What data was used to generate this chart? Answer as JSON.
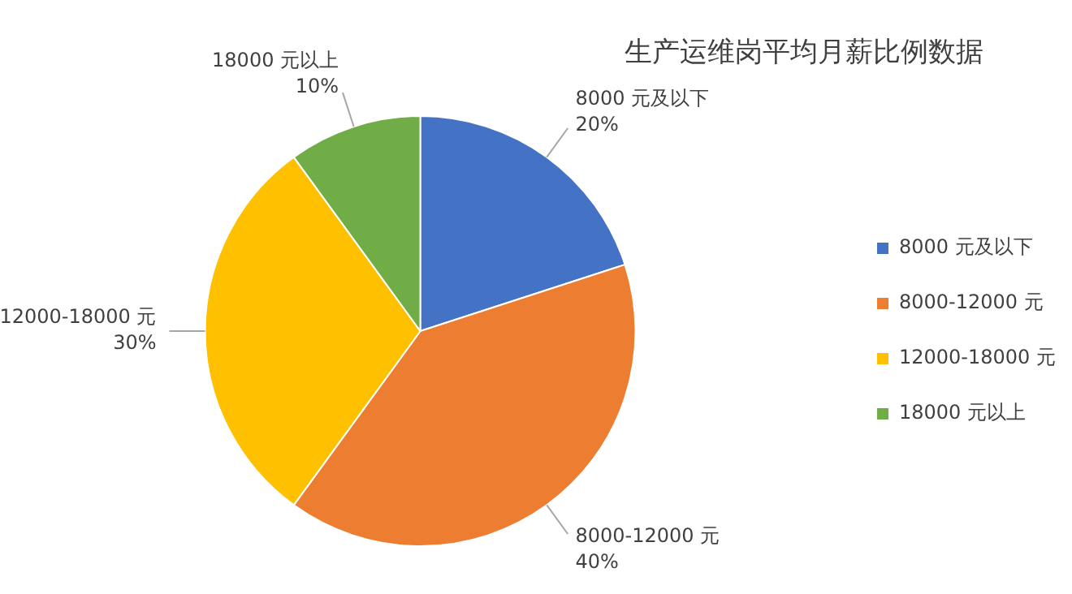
{
  "chart_data": {
    "type": "pie",
    "title": "生产运维岗平均月薪比例数据",
    "categories": [
      "8000 元及以下",
      "8000-12000 元",
      "12000-18000 元",
      "18000 元以上"
    ],
    "values": [
      20,
      40,
      30,
      10
    ],
    "colors": [
      "#4472c4",
      "#ed7d31",
      "#ffc000",
      "#70ad47"
    ],
    "value_labels": [
      "20%",
      "40%",
      "30%",
      "10%"
    ],
    "legend": "right"
  }
}
